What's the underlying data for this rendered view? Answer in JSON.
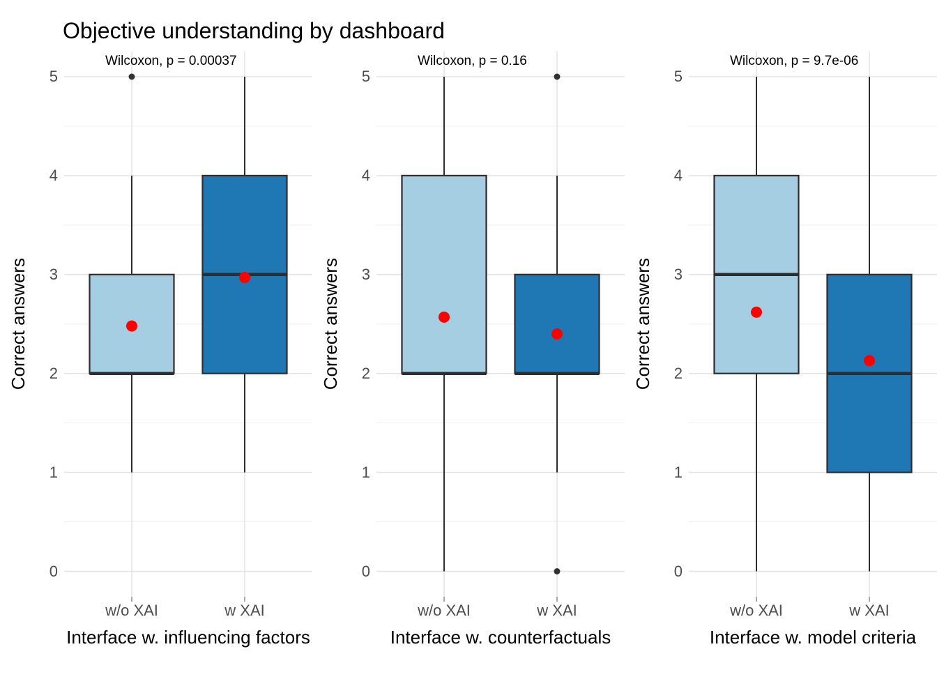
{
  "title": "Objective understanding by dashboard",
  "colors": {
    "background": "#FFFFFF",
    "box_fill_light": "#A6CEE3",
    "box_fill_dark": "#1F78B4",
    "box_border": "#2D2D2D",
    "median_line": "#2D2D2D",
    "whisker": "#2D2D2D",
    "mean_point": "#FF0000",
    "outlier_point": "#333333",
    "grid_major": "#E4E4E4",
    "grid_minor": "#F1F1F1",
    "axis_text": "#4D4D4D",
    "title_text": "#000000"
  },
  "y_axis": {
    "label": "Correct answers",
    "ticks": [
      0,
      1,
      2,
      3,
      4,
      5
    ],
    "range": [
      0,
      5
    ],
    "minor_ticks": [
      0.5,
      1.5,
      2.5,
      3.5,
      4.5
    ],
    "grid": "on"
  },
  "categories": [
    "w/o XAI",
    "w XAI"
  ],
  "legend": "none",
  "chart_data": [
    {
      "type": "boxplot",
      "annotation": "Wilcoxon, p = 0.00037",
      "xlabel": "Interface w. influencing factors",
      "ylabel": "Correct answers",
      "ylim": [
        0,
        5
      ],
      "categories": [
        "w/o XAI",
        "w XAI"
      ],
      "series": [
        {
          "name": "w/o XAI",
          "fill": "#A6CEE3",
          "whisker_low": 1,
          "q1": 2,
          "median": 2,
          "q3": 3,
          "whisker_high": 4,
          "mean": 2.48,
          "outliers": [
            5
          ]
        },
        {
          "name": "w XAI",
          "fill": "#1F78B4",
          "whisker_low": 1,
          "q1": 2,
          "median": 3,
          "q3": 4,
          "whisker_high": 5,
          "mean": 2.97,
          "outliers": []
        }
      ]
    },
    {
      "type": "boxplot",
      "annotation": "Wilcoxon, p = 0.16",
      "xlabel": "Interface w. counterfactuals",
      "ylabel": "Correct answers",
      "ylim": [
        0,
        5
      ],
      "categories": [
        "w/o XAI",
        "w XAI"
      ],
      "series": [
        {
          "name": "w/o XAI",
          "fill": "#A6CEE3",
          "whisker_low": 0,
          "q1": 2,
          "median": 2,
          "q3": 4,
          "whisker_high": 5,
          "mean": 2.57,
          "outliers": []
        },
        {
          "name": "w XAI",
          "fill": "#1F78B4",
          "whisker_low": 1,
          "q1": 2,
          "median": 2,
          "q3": 3,
          "whisker_high": 4,
          "mean": 2.4,
          "outliers": [
            5,
            0
          ]
        }
      ]
    },
    {
      "type": "boxplot",
      "annotation": "Wilcoxon, p = 9.7e-06",
      "xlabel": "Interface w. model criteria",
      "ylabel": "Correct answers",
      "ylim": [
        0,
        5
      ],
      "categories": [
        "w/o XAI",
        "w XAI"
      ],
      "series": [
        {
          "name": "w/o XAI",
          "fill": "#A6CEE3",
          "whisker_low": 0,
          "q1": 2,
          "median": 3,
          "q3": 4,
          "whisker_high": 5,
          "mean": 2.62,
          "outliers": []
        },
        {
          "name": "w XAI",
          "fill": "#1F78B4",
          "whisker_low": 0,
          "q1": 1,
          "median": 2,
          "q3": 3,
          "whisker_high": 5,
          "mean": 2.13,
          "outliers": []
        }
      ]
    }
  ]
}
